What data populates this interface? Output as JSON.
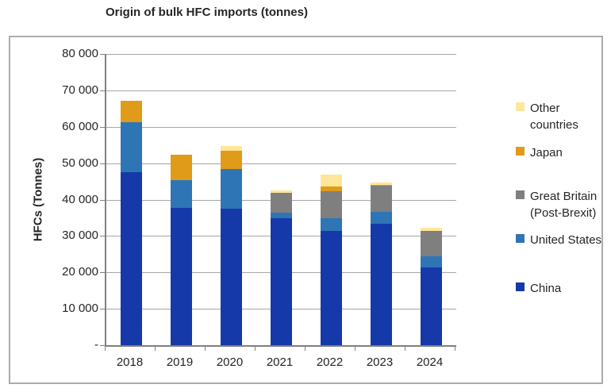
{
  "title": "Origin of bulk HFC imports (tonnes)",
  "y_axis": {
    "title": "HFCs (Tonnes)",
    "tick_labels": [
      "80 000",
      "70 000",
      "60 000",
      "50 000",
      "40 000",
      "30 000",
      "20 000",
      "10 000",
      "-"
    ],
    "max": 80000,
    "tick_step": 10000
  },
  "x_axis": {
    "categories": [
      "2018",
      "2019",
      "2020",
      "2021",
      "2022",
      "2023",
      "2024"
    ]
  },
  "legend": {
    "position": "right",
    "items": [
      {
        "label": "Other countries",
        "lines": "Other countries",
        "color": "#FFE699"
      },
      {
        "label": "Japan",
        "lines": "Japan",
        "color": "#E09B18"
      },
      {
        "label": "Great Britain (Post-Brexit)",
        "lines": "Great Britain\n(Post-Brexit)",
        "color": "#7F7F7F"
      },
      {
        "label": "United States",
        "lines": "United States",
        "color": "#2E75B6"
      },
      {
        "label": "China",
        "lines": "China",
        "color": "#1539A8"
      }
    ]
  },
  "chart_data": {
    "type": "bar",
    "stacked": true,
    "title": "Origin of bulk HFC imports (tonnes)",
    "ylabel": "HFCs (Tonnes)",
    "ylim": [
      0,
      80000
    ],
    "grid": true,
    "legend_position": "right",
    "categories": [
      "2018",
      "2019",
      "2020",
      "2021",
      "2022",
      "2023",
      "2024"
    ],
    "series": [
      {
        "name": "China",
        "color": "#1539A8",
        "values": [
          47500,
          37700,
          37500,
          34800,
          31300,
          33300,
          21400
        ]
      },
      {
        "name": "United States",
        "color": "#2E75B6",
        "values": [
          13700,
          7600,
          10900,
          1600,
          3600,
          3400,
          3000
        ]
      },
      {
        "name": "Great Britain (Post-Brexit)",
        "color": "#7F7F7F",
        "values": [
          0,
          0,
          0,
          5500,
          7300,
          7100,
          6900
        ]
      },
      {
        "name": "Japan",
        "color": "#E09B18",
        "values": [
          6000,
          7100,
          5100,
          0,
          1300,
          300,
          0
        ]
      },
      {
        "name": "Other countries",
        "color": "#FFE699",
        "values": [
          0,
          0,
          1300,
          700,
          3400,
          600,
          1000
        ]
      }
    ],
    "totals": [
      67200,
      52400,
      54800,
      42600,
      46900,
      44700,
      32300
    ]
  }
}
